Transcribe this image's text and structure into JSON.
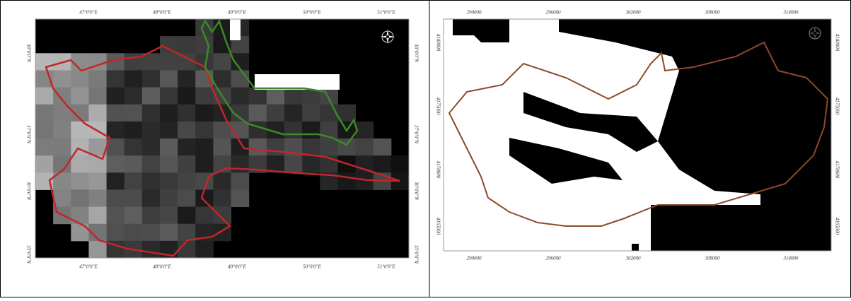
{
  "panels": [
    {
      "x_labels": [
        "47°0'0\"E",
        "48°0'0\"E",
        "49°0'0\"E",
        "50°0'0\"E",
        "51°0'0\"E"
      ],
      "y_labels": [
        "38°0'0\"N",
        "37°0'0\"N",
        "36°0'0\"N",
        "35°0'0\"N"
      ]
    },
    {
      "x_labels": [
        "290000",
        "296000",
        "302000",
        "308000",
        "314000"
      ],
      "y_labels": [
        "4180000",
        "4175000",
        "4170000",
        "4165000"
      ]
    }
  ]
}
